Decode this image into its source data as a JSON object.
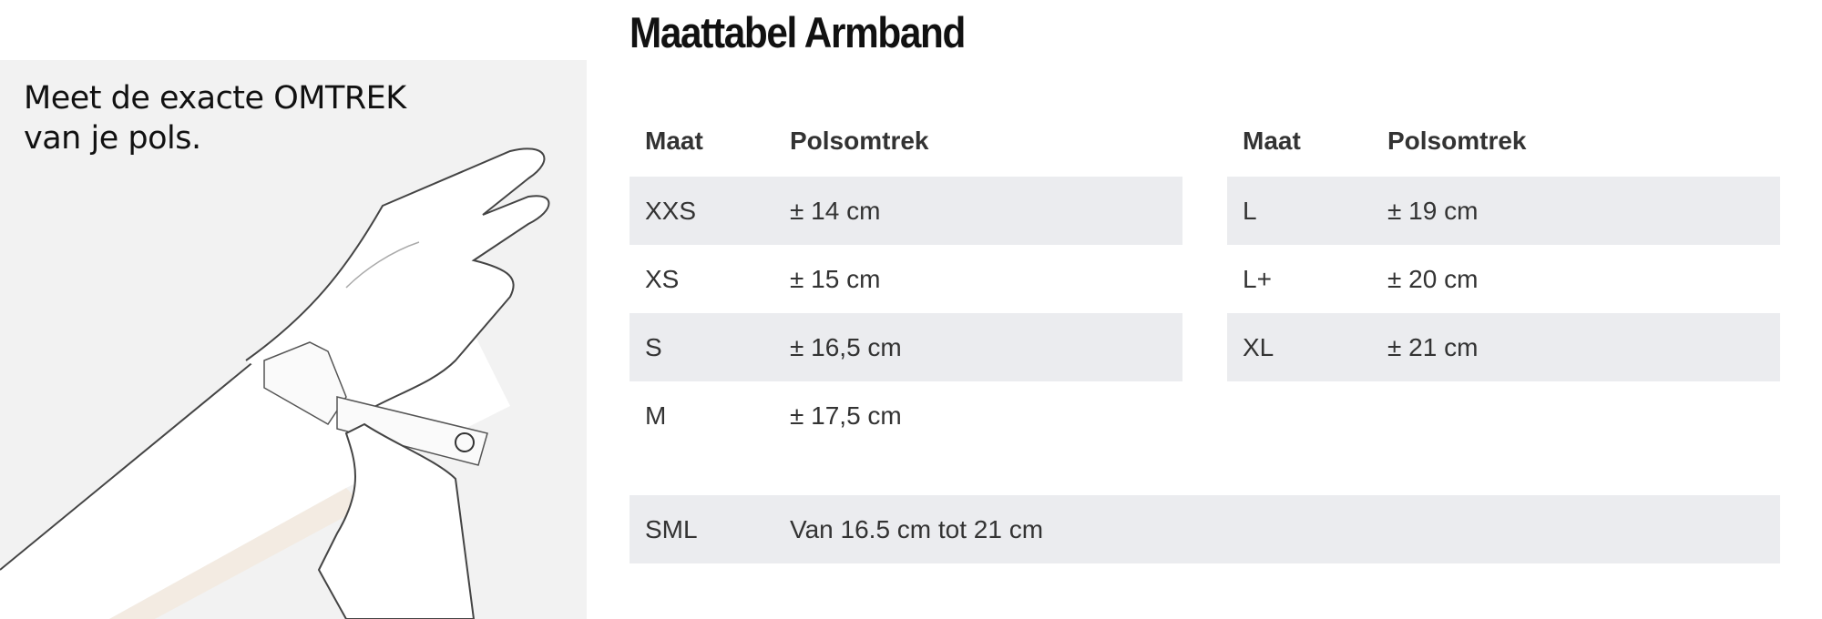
{
  "instruction": {
    "line1": "Meet de exacte OMTREK",
    "line2": "van je pols."
  },
  "title": "Maattabel Armband",
  "headers": {
    "size": "Maat",
    "circumference": "Polsomtrek"
  },
  "left_table": [
    {
      "size": "XXS",
      "circumference": "± 14 cm"
    },
    {
      "size": "XS",
      "circumference": "± 15 cm"
    },
    {
      "size": "S",
      "circumference": "± 16,5 cm"
    },
    {
      "size": "M",
      "circumference": "± 17,5 cm"
    }
  ],
  "right_table": [
    {
      "size": "L",
      "circumference": "± 19 cm"
    },
    {
      "size": "L+",
      "circumference": "± 20 cm"
    },
    {
      "size": "XL",
      "circumference": "± 21 cm"
    }
  ],
  "sml": {
    "size": "SML",
    "range": "Van 16.5 cm tot 21 cm"
  },
  "colors": {
    "panel": "#f2f2f2",
    "row_shade": "#ebecef",
    "text": "#333333"
  }
}
